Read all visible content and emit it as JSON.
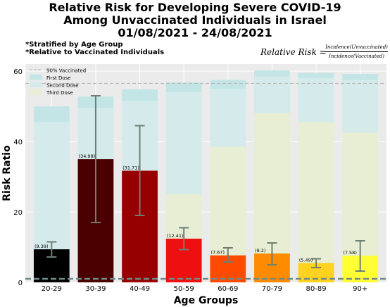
{
  "header": {
    "title_line1": "Relative Risk for Developing Severe COVID-19",
    "title_line2": "Among Unvaccinated Individuals in Israel",
    "title_line3": "01/08/2021 - 24/08/2021",
    "note1": "*Stratified by Age Group",
    "note2": "*Relative to Vaccinated Individuals",
    "formula_lhs": "Relative Risk =",
    "formula_numerator": "Incidence(Unvaccinated)",
    "formula_denominator": "Incidence(Vaccinated)"
  },
  "chart_data": {
    "type": "bar",
    "title": "",
    "xlabel": "Age Groups",
    "ylabel": "Risk Ratio",
    "ylim": [
      0,
      62
    ],
    "yticks": [
      0,
      20,
      40,
      60
    ],
    "grid": true,
    "legend_position": "top-left",
    "legend": [
      "90% Vaccinated",
      "First Dose",
      "Second Dose",
      "Third Dose"
    ],
    "reference_line": {
      "name": "90% Vaccinated",
      "value": 56.5,
      "color": "#bbbbbb"
    },
    "baseline_line": {
      "value": 1,
      "color": "#708a8a"
    },
    "categories": [
      "20-29",
      "30-39",
      "40-49",
      "50-59",
      "60-69",
      "70-79",
      "80-89",
      "90+"
    ],
    "risk_values": [
      9.39,
      34.98,
      31.71,
      12.41,
      7.67,
      8.2,
      5.49,
      7.58
    ],
    "risk_labels": [
      "(9.39)",
      "(34.98)",
      "(31.71)",
      "(12.41)",
      "(7.67)",
      "(8.2)",
      "(5.49)",
      "(7.58)"
    ],
    "error_low": [
      7.2,
      17.0,
      19.0,
      9.3,
      5.8,
      5.0,
      4.2,
      3.2
    ],
    "error_high": [
      11.5,
      53.0,
      44.5,
      15.5,
      9.8,
      11.2,
      6.7,
      11.8
    ],
    "bar_colors": [
      "#000000",
      "#4a0000",
      "#960000",
      "#ee1010",
      "#ff4a00",
      "#ff8c00",
      "#ffd21e",
      "#ffff33"
    ],
    "series": [
      {
        "name": "Third Dose",
        "color": "#e8eed4",
        "values": [
          0,
          0,
          0,
          25.0,
          38.5,
          48.0,
          45.5,
          42.5
        ]
      },
      {
        "name": "Second Dose",
        "color": "#d5ebeb",
        "values": [
          45.5,
          49.5,
          51.5,
          54.0,
          55.0,
          58.5,
          58.0,
          57.5
        ]
      },
      {
        "name": "First Dose",
        "color": "#c4e5e5",
        "values": [
          50.0,
          52.8,
          54.8,
          56.8,
          57.5,
          60.2,
          59.5,
          59.2
        ]
      }
    ]
  }
}
